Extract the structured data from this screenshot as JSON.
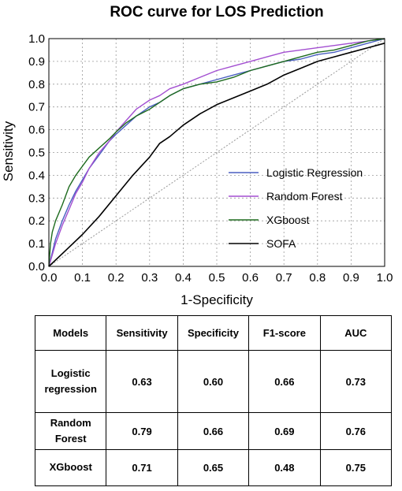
{
  "chart_data": {
    "type": "line",
    "title": "ROC curve for LOS Prediction",
    "xlabel": "1-Specificity",
    "ylabel": "Sensitivity",
    "xlim": [
      0.0,
      1.0
    ],
    "ylim": [
      0.0,
      1.0
    ],
    "xticks": [
      "0.0",
      "0.1",
      "0.2",
      "0.3",
      "0.4",
      "0.5",
      "0.6",
      "0.7",
      "0.8",
      "0.9",
      "1.0"
    ],
    "yticks": [
      "0.0",
      "0.1",
      "0.2",
      "0.3",
      "0.4",
      "0.5",
      "0.6",
      "0.7",
      "0.8",
      "0.9",
      "1.0"
    ],
    "grid": true,
    "legend_position": "lower-right",
    "series": [
      {
        "name": "Logistic Regression",
        "color": "#4a5fc1",
        "x": [
          0.0,
          0.01,
          0.02,
          0.04,
          0.06,
          0.08,
          0.1,
          0.12,
          0.15,
          0.18,
          0.2,
          0.23,
          0.26,
          0.3,
          0.33,
          0.36,
          0.4,
          0.45,
          0.5,
          0.55,
          0.6,
          0.65,
          0.7,
          0.75,
          0.8,
          0.85,
          0.9,
          0.95,
          1.0
        ],
        "y": [
          0.0,
          0.06,
          0.12,
          0.2,
          0.27,
          0.33,
          0.38,
          0.43,
          0.49,
          0.55,
          0.58,
          0.62,
          0.66,
          0.7,
          0.72,
          0.75,
          0.78,
          0.8,
          0.82,
          0.84,
          0.86,
          0.88,
          0.9,
          0.91,
          0.93,
          0.94,
          0.96,
          0.98,
          1.0
        ]
      },
      {
        "name": "Random Forest",
        "color": "#a34fd1",
        "x": [
          0.0,
          0.01,
          0.02,
          0.04,
          0.06,
          0.08,
          0.1,
          0.12,
          0.15,
          0.18,
          0.2,
          0.23,
          0.26,
          0.3,
          0.33,
          0.36,
          0.4,
          0.45,
          0.5,
          0.55,
          0.6,
          0.65,
          0.7,
          0.75,
          0.8,
          0.85,
          0.9,
          0.95,
          1.0
        ],
        "y": [
          0.0,
          0.05,
          0.1,
          0.18,
          0.25,
          0.32,
          0.37,
          0.43,
          0.5,
          0.55,
          0.59,
          0.64,
          0.69,
          0.73,
          0.75,
          0.78,
          0.8,
          0.83,
          0.86,
          0.88,
          0.9,
          0.92,
          0.94,
          0.95,
          0.96,
          0.97,
          0.98,
          0.99,
          1.0
        ]
      },
      {
        "name": "XGboost",
        "color": "#1e6b1e",
        "x": [
          0.0,
          0.005,
          0.01,
          0.02,
          0.04,
          0.06,
          0.08,
          0.1,
          0.12,
          0.15,
          0.18,
          0.2,
          0.23,
          0.26,
          0.3,
          0.33,
          0.36,
          0.4,
          0.45,
          0.5,
          0.55,
          0.6,
          0.65,
          0.7,
          0.75,
          0.8,
          0.85,
          0.9,
          0.95,
          1.0
        ],
        "y": [
          0.0,
          0.1,
          0.15,
          0.2,
          0.27,
          0.35,
          0.4,
          0.44,
          0.48,
          0.52,
          0.56,
          0.59,
          0.63,
          0.66,
          0.69,
          0.72,
          0.75,
          0.78,
          0.8,
          0.81,
          0.83,
          0.86,
          0.88,
          0.9,
          0.92,
          0.94,
          0.95,
          0.97,
          0.99,
          1.0
        ]
      },
      {
        "name": "SOFA",
        "color": "#000000",
        "x": [
          0.0,
          0.05,
          0.1,
          0.15,
          0.2,
          0.25,
          0.3,
          0.33,
          0.36,
          0.4,
          0.45,
          0.5,
          0.55,
          0.6,
          0.65,
          0.7,
          0.75,
          0.8,
          0.85,
          0.9,
          0.95,
          1.0
        ],
        "y": [
          0.0,
          0.07,
          0.14,
          0.22,
          0.31,
          0.4,
          0.48,
          0.54,
          0.57,
          0.62,
          0.67,
          0.71,
          0.74,
          0.77,
          0.8,
          0.84,
          0.87,
          0.9,
          0.92,
          0.94,
          0.96,
          0.98
        ]
      }
    ],
    "reference_line": {
      "x": [
        0.0,
        1.0
      ],
      "y": [
        0.0,
        1.0
      ],
      "color": "#999999"
    }
  },
  "table": {
    "headers": [
      "Models",
      "Sensitivity",
      "Specificity",
      "F1-score",
      "AUC"
    ],
    "rows": [
      {
        "model": [
          "Logistic",
          "regression"
        ],
        "sensitivity": "0.63",
        "specificity": "0.60",
        "f1": "0.66",
        "auc": "0.73"
      },
      {
        "model": [
          "Random Forest"
        ],
        "sensitivity": "0.79",
        "specificity": "0.66",
        "f1": "0.69",
        "auc": "0.76"
      },
      {
        "model": [
          "XGboost"
        ],
        "sensitivity": "0.71",
        "specificity": "0.65",
        "f1": "0.48",
        "auc": "0.75"
      }
    ]
  }
}
